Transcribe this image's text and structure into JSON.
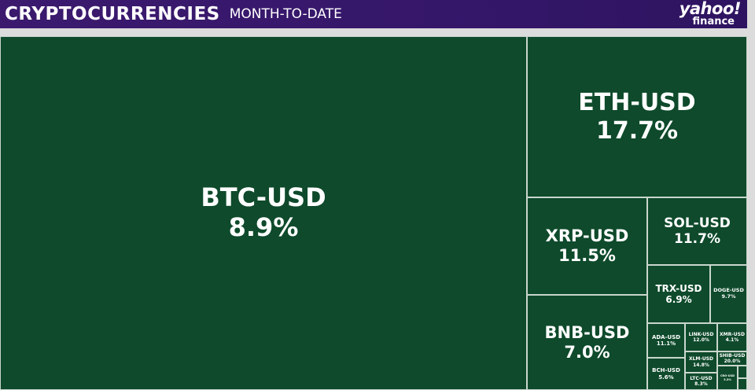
{
  "header": {
    "title": "CRYPTOCURRENCIES",
    "subtitle": "MONTH-TO-DATE",
    "logo_line1": "yahoo!",
    "logo_line2": "finance"
  },
  "colors": {
    "tile": "#0e4a2b",
    "header": "#3b1a6e",
    "text": "#ffffff"
  },
  "chart_data": {
    "type": "treemap",
    "title": "CRYPTOCURRENCIES",
    "subtitle": "MONTH-TO-DATE",
    "items": [
      {
        "name": "BTC-USD",
        "change": "8.9%"
      },
      {
        "name": "ETH-USD",
        "change": "17.7%"
      },
      {
        "name": "XRP-USD",
        "change": "11.5%"
      },
      {
        "name": "SOL-USD",
        "change": "11.7%"
      },
      {
        "name": "BNB-USD",
        "change": "7.0%"
      },
      {
        "name": "TRX-USD",
        "change": "6.9%"
      },
      {
        "name": "DOGE-USD",
        "change": "9.7%"
      },
      {
        "name": "ADA-USD",
        "change": "11.1%"
      },
      {
        "name": "LINK-USD",
        "change": "12.0%"
      },
      {
        "name": "XMR-USD",
        "change": "4.1%"
      },
      {
        "name": "XLM-USD",
        "change": "14.8%"
      },
      {
        "name": "SHIB-USD",
        "change": "20.0%"
      },
      {
        "name": "BCH-USD",
        "change": "5.6%"
      },
      {
        "name": "LTC-USD",
        "change": "8.3%"
      },
      {
        "name": "CRO-USD",
        "change": "3.3%"
      }
    ]
  }
}
